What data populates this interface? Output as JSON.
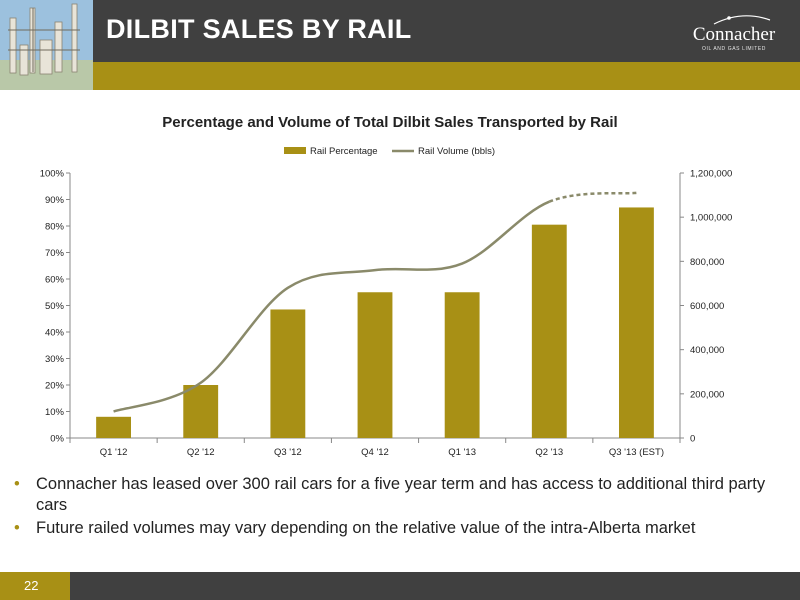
{
  "header": {
    "title": "DILBIT SALES BY RAIL",
    "logo_name": "Connacher",
    "logo_subtitle": "OIL AND GAS LIMITED",
    "colors": {
      "dark": "#404040",
      "gold": "#a89015"
    }
  },
  "chart_data": {
    "type": "bar",
    "title": "Percentage and Volume of Total Dilbit Sales Transported by Rail",
    "categories": [
      "Q1 '12",
      "Q2 '12",
      "Q3 '12",
      "Q4 '12",
      "Q1 '13",
      "Q2 '13",
      "Q3 '13 (EST)"
    ],
    "series": [
      {
        "name": "Rail Percentage",
        "type": "bar",
        "axis": "left",
        "color": "#a89015",
        "values": [
          8,
          20,
          48.5,
          55,
          55,
          80.5,
          87
        ]
      },
      {
        "name": "Rail Volume (bbls)",
        "type": "line",
        "axis": "right",
        "color": "#8a8a6a",
        "values": [
          120000,
          250000,
          680000,
          760000,
          790000,
          1070000,
          1110000
        ],
        "dashed_from_index": 5
      }
    ],
    "y_left": {
      "ticks": [
        "0%",
        "10%",
        "20%",
        "30%",
        "40%",
        "50%",
        "60%",
        "70%",
        "80%",
        "90%",
        "100%"
      ],
      "lim": [
        0,
        100
      ]
    },
    "y_right": {
      "ticks": [
        "0",
        "200,000",
        "400,000",
        "600,000",
        "800,000",
        "1,000,000",
        "1,200,000"
      ],
      "lim": [
        0,
        1200000
      ]
    },
    "legend_position": "top-center",
    "grid": false
  },
  "bullets": [
    "Connacher has leased over 300 rail cars for a five year term and has access to additional third party cars",
    "Future railed volumes may vary depending on the relative value of the intra-Alberta market"
  ],
  "bullet_symbol": "•",
  "footer": {
    "page_number": "22"
  }
}
